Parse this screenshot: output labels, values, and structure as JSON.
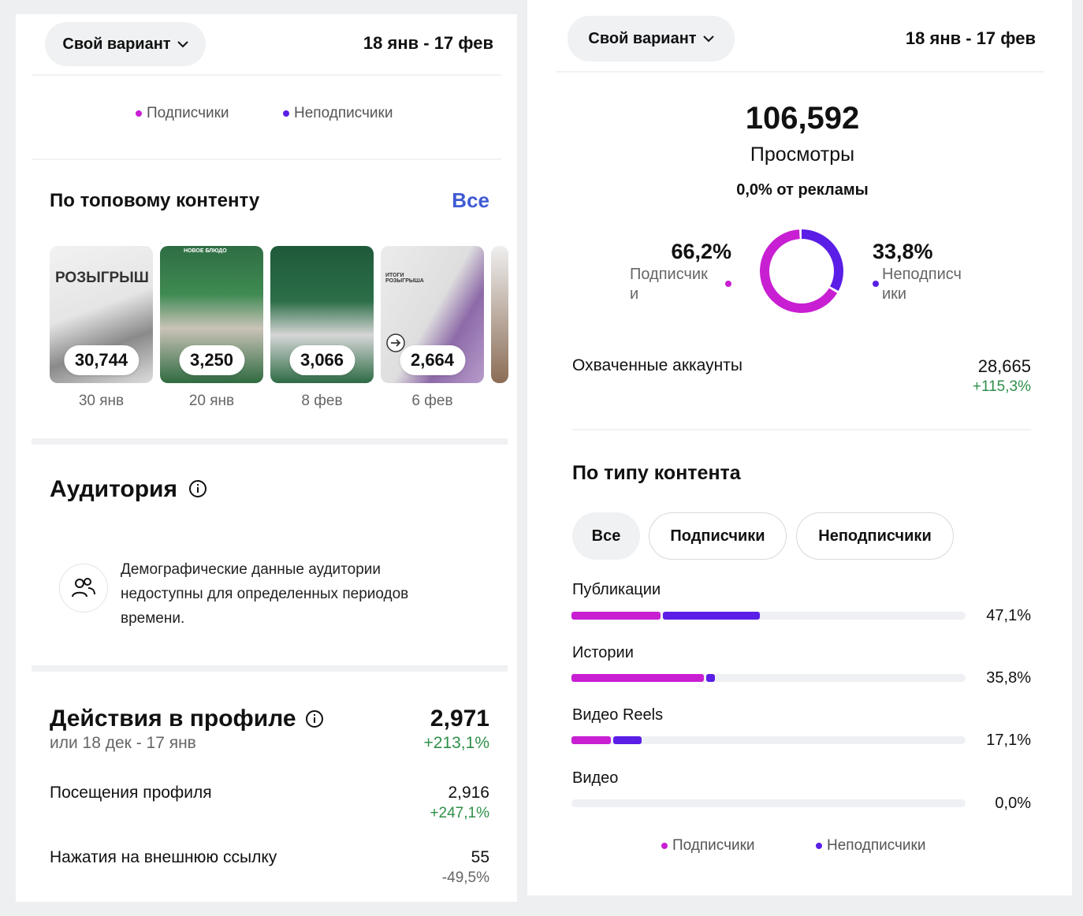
{
  "colors": {
    "followers": "#c81fd3",
    "non_followers": "#5a1ee6",
    "positive": "#2f8f4a",
    "link": "#3f5bd4"
  },
  "left": {
    "filter_label": "Свой вариант",
    "date_range": "18 янв - 17 фев",
    "legend": {
      "followers": "Подписчики",
      "non_followers": "Неподписчики"
    },
    "top_content": {
      "title": "По топовому контенту",
      "all_link": "Все",
      "items": [
        {
          "value": "30,744",
          "date": "30 янв",
          "caption": "РОЗЫГРЫШ"
        },
        {
          "value": "3,250",
          "date": "20 янв",
          "caption": "НОВОЕ БЛЮДО"
        },
        {
          "value": "3,066",
          "date": "8 фев",
          "caption": ""
        },
        {
          "value": "2,664",
          "date": "6 фев",
          "caption": "ИТОГИ РОЗЫГРЫША"
        }
      ]
    },
    "audience": {
      "title": "Аудитория",
      "notice": [
        "Демографические данные аудитории",
        "недоступны для определенных периодов",
        "времени."
      ]
    },
    "profile_actions": {
      "title": "Действия в профиле",
      "subtitle": "или 18 дек - 17 янв",
      "total": "2,971",
      "total_change": "+213,1%",
      "rows": [
        {
          "label": "Посещения профиля",
          "value": "2,916",
          "change": "+247,1%"
        },
        {
          "label": "Нажатия на внешнюю ссылку",
          "value": "55",
          "change": "-49,5%"
        }
      ]
    }
  },
  "right": {
    "filter_label": "Свой вариант",
    "date_range": "18 янв - 17 фев",
    "views_total": "106,592",
    "views_label": "Просмотры",
    "ads_share": "0,0% от рекламы",
    "followers_pct": "66,2%",
    "followers_label_1": "Подписчик",
    "followers_label_2": "и",
    "non_followers_pct": "33,8%",
    "non_followers_label_1": "Неподписч",
    "non_followers_label_2": "ики",
    "donut": {
      "followers_fraction": 0.662,
      "non_followers_fraction": 0.338
    },
    "reached": {
      "label": "Охваченные аккаунты",
      "value": "28,665",
      "change": "+115,3%"
    },
    "by_type": {
      "title": "По типу контента",
      "tabs": [
        "Все",
        "Подписчики",
        "Неподписчики"
      ],
      "rows": [
        {
          "label": "Публикации",
          "pct": "47,1%",
          "followers": 0.226,
          "non_followers": 0.245
        },
        {
          "label": "Истории",
          "pct": "35,8%",
          "followers": 0.336,
          "non_followers": 0.022
        },
        {
          "label": "Видео Reels",
          "pct": "17,1%",
          "followers": 0.1,
          "non_followers": 0.071
        },
        {
          "label": "Видео",
          "pct": "0,0%",
          "followers": 0,
          "non_followers": 0
        }
      ]
    },
    "legend": {
      "followers": "Подписчики",
      "non_followers": "Неподписчики"
    }
  }
}
